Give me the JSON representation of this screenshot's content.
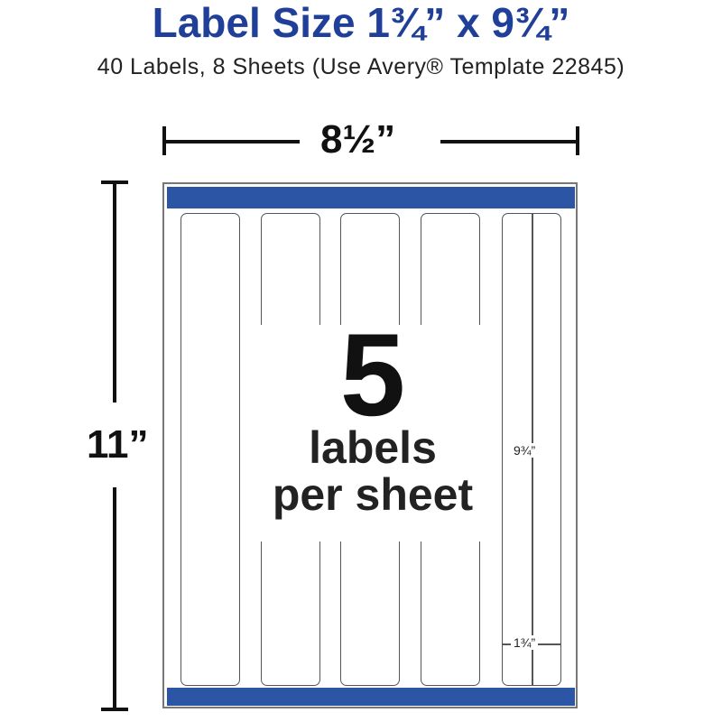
{
  "title": "Label Size 1¾” x 9¾”",
  "subtitle": "40 Labels, 8 Sheets (Use Avery® Template 22845)",
  "diagram": {
    "width_label": "8½”",
    "height_label": "11”",
    "count": "5",
    "count_caption_line1": "labels",
    "count_caption_line2": "per sheet",
    "label_length": "9¾”",
    "label_width": "1¾”",
    "labels_per_sheet": 5,
    "accent_color": "#2c55a6",
    "title_color": "#1f3f99"
  }
}
